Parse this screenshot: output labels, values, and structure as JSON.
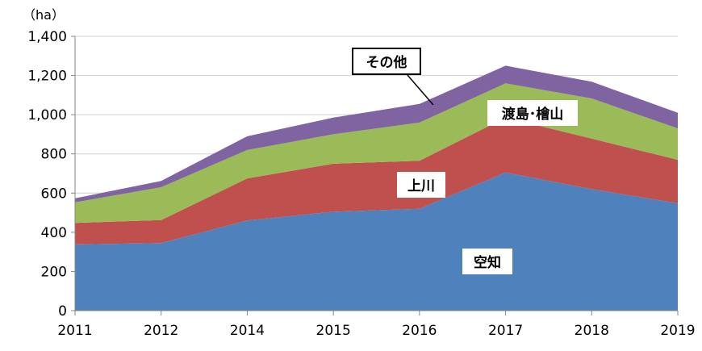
{
  "chart_data": {
    "type": "area",
    "stacked": true,
    "title": "",
    "xlabel": "",
    "ylabel": "",
    "unit": "（ha）",
    "categories": [
      "2011",
      "2012",
      "2014",
      "2015",
      "2016",
      "2017",
      "2018",
      "2019"
    ],
    "ylim": [
      0,
      1400
    ],
    "yticks": [
      0,
      200,
      400,
      600,
      800,
      1000,
      1200,
      1400
    ],
    "ytick_labels": [
      "0",
      "200",
      "400",
      "600",
      "800",
      "1,000",
      "1,200",
      "1,400"
    ],
    "grid": true,
    "legend": "none",
    "series": [
      {
        "name": "空知",
        "color": "#4F81BD",
        "values": [
          338,
          345,
          460,
          505,
          520,
          705,
          620,
          548
        ]
      },
      {
        "name": "上川",
        "color": "#C0504D",
        "values": [
          110,
          117,
          215,
          245,
          245,
          280,
          258,
          222
        ]
      },
      {
        "name": "渡島･檜山",
        "color": "#9BBB59",
        "values": [
          105,
          168,
          145,
          150,
          195,
          175,
          205,
          160
        ]
      },
      {
        "name": "その他",
        "color": "#8064A2",
        "values": [
          20,
          32,
          70,
          85,
          95,
          90,
          85,
          80
        ]
      }
    ]
  }
}
